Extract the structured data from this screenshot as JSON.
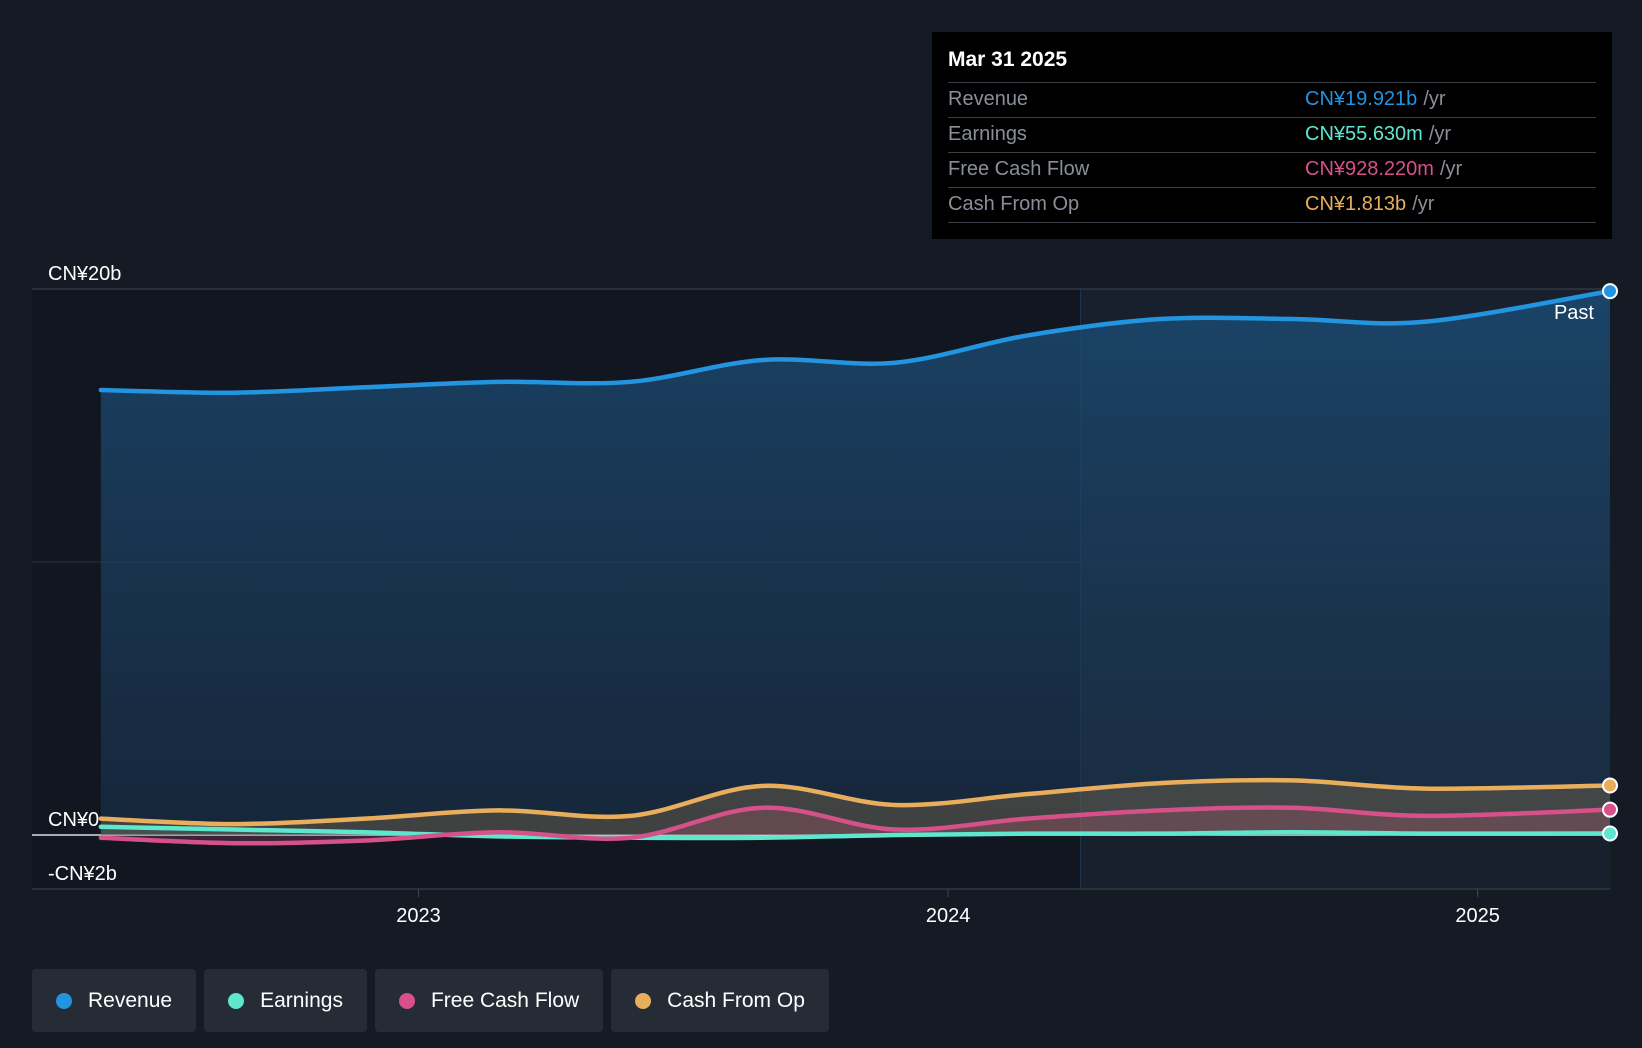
{
  "colors": {
    "revenue": "#2394e0",
    "earnings": "#5ee6cf",
    "free_cash_flow": "#d6508a",
    "cash_from_op": "#e8ae5c",
    "background": "#151b24"
  },
  "tooltip": {
    "date": "Mar 31 2025",
    "rows": [
      {
        "label": "Revenue",
        "value": "CN¥19.921b",
        "unit": "/yr"
      },
      {
        "label": "Earnings",
        "value": "CN¥55.630m",
        "unit": "/yr"
      },
      {
        "label": "Free Cash Flow",
        "value": "CN¥928.220m",
        "unit": "/yr"
      },
      {
        "label": "Cash From Op",
        "value": "CN¥1.813b",
        "unit": "/yr"
      }
    ]
  },
  "past_label": "Past",
  "legend": [
    {
      "label": "Revenue",
      "color_key": "revenue"
    },
    {
      "label": "Earnings",
      "color_key": "earnings"
    },
    {
      "label": "Free Cash Flow",
      "color_key": "free_cash_flow"
    },
    {
      "label": "Cash From Op",
      "color_key": "cash_from_op"
    }
  ],
  "chart_data": {
    "type": "area",
    "y_tick_labels": [
      "CN¥20b",
      "CN¥0",
      "-CN¥2b"
    ],
    "y_tick_values": [
      20,
      0,
      -2
    ],
    "ylim": [
      -2,
      20
    ],
    "x_tick_labels": [
      "2023",
      "2024",
      "2025"
    ],
    "x_tick_values": [
      2023.0,
      2024.0,
      2025.0
    ],
    "xlim": [
      2022.27,
      2025.25
    ],
    "grid": true,
    "legend_position": "bottom-left",
    "x": [
      2022.4,
      2022.65,
      2022.9,
      2023.15,
      2023.4,
      2023.65,
      2023.9,
      2024.15,
      2024.4,
      2024.65,
      2024.9,
      2025.25
    ],
    "series": [
      {
        "name": "Revenue",
        "color_key": "revenue",
        "values": [
          16.3,
          16.2,
          16.4,
          16.6,
          16.6,
          17.4,
          17.3,
          18.3,
          18.9,
          18.9,
          18.8,
          19.921
        ]
      },
      {
        "name": "Earnings",
        "color_key": "earnings",
        "values": [
          0.3,
          0.2,
          0.1,
          -0.05,
          -0.1,
          -0.1,
          0.0,
          0.05,
          0.05,
          0.1,
          0.05,
          0.0556
        ]
      },
      {
        "name": "Free Cash Flow",
        "color_key": "free_cash_flow",
        "values": [
          -0.1,
          -0.3,
          -0.2,
          0.1,
          -0.1,
          1.0,
          0.2,
          0.6,
          0.9,
          1.0,
          0.7,
          0.928
        ]
      },
      {
        "name": "Cash From Op",
        "color_key": "cash_from_op",
        "values": [
          0.6,
          0.4,
          0.6,
          0.9,
          0.7,
          1.8,
          1.1,
          1.5,
          1.9,
          2.0,
          1.7,
          1.813
        ]
      }
    ],
    "past_start_x": 2024.25
  }
}
